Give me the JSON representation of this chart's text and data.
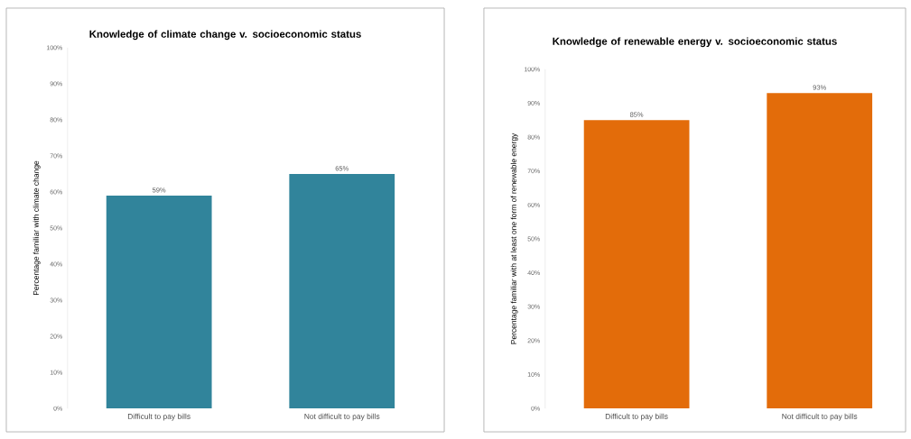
{
  "chart_data": [
    {
      "type": "bar",
      "title": "Knowledge of climate change v. socioeconomic status",
      "ylabel": "Percentage familiar with climate change",
      "categories": [
        "Difficult to pay bills",
        "Not difficult to pay bills"
      ],
      "values": [
        59,
        65
      ],
      "value_labels": [
        "59%",
        "65%"
      ],
      "color": "#31849b",
      "ylim": [
        0,
        100
      ],
      "yticks": [
        {
          "value": 0,
          "label": "0%"
        },
        {
          "value": 10,
          "label": "10%"
        },
        {
          "value": 20,
          "label": "20%"
        },
        {
          "value": 30,
          "label": "30%"
        },
        {
          "value": 40,
          "label": "40%"
        },
        {
          "value": 50,
          "label": "50%"
        },
        {
          "value": 60,
          "label": "60%"
        },
        {
          "value": 70,
          "label": "70%"
        },
        {
          "value": 80,
          "label": "80%"
        },
        {
          "value": 90,
          "label": "90%"
        },
        {
          "value": 100,
          "label": "100%"
        }
      ]
    },
    {
      "type": "bar",
      "title": "Knowledge of renewable energy v. socioeconomic status",
      "ylabel": "Percentage familiar with at least one form of renewable energy",
      "categories": [
        "Difficult to pay bills",
        "Not difficult to pay bills"
      ],
      "values": [
        85,
        93
      ],
      "value_labels": [
        "85%",
        "93%"
      ],
      "color": "#e36c0a",
      "ylim": [
        0,
        100
      ],
      "yticks": [
        {
          "value": 0,
          "label": "0%"
        },
        {
          "value": 10,
          "label": "10%"
        },
        {
          "value": 20,
          "label": "20%"
        },
        {
          "value": 30,
          "label": "30%"
        },
        {
          "value": 40,
          "label": "40%"
        },
        {
          "value": 50,
          "label": "50%"
        },
        {
          "value": 60,
          "label": "60%"
        },
        {
          "value": 70,
          "label": "70%"
        },
        {
          "value": 80,
          "label": "80%"
        },
        {
          "value": 90,
          "label": "90%"
        },
        {
          "value": 100,
          "label": "100%"
        }
      ]
    }
  ]
}
